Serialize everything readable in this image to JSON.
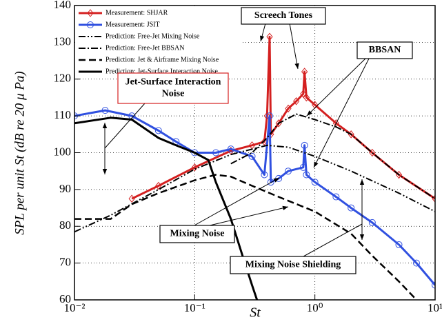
{
  "chart_data": {
    "type": "line",
    "xlabel": "St",
    "ylabel": "SPL per unit St (dB re 20 μ Pa)",
    "xscale": "log",
    "xlim": [
      0.01,
      10
    ],
    "xticks": [
      {
        "value": 0.01,
        "label": "10⁻²"
      },
      {
        "value": 0.1,
        "label": "10⁻¹"
      },
      {
        "value": 1,
        "label": "10⁰"
      },
      {
        "value": 10,
        "label": "10¹"
      }
    ],
    "ylim": [
      60,
      140
    ],
    "yticks": [
      60,
      70,
      80,
      90,
      100,
      110,
      120,
      130,
      140
    ],
    "grid": true,
    "legend": "upper left",
    "series": [
      {
        "name": "Measurement: SHJAR",
        "color": "#d42020",
        "width": 3,
        "dash": "",
        "marker": "diamond",
        "x": [
          0.03,
          0.05,
          0.1,
          0.2,
          0.3,
          0.38,
          0.4,
          0.42,
          0.43,
          0.5,
          0.6,
          0.7,
          0.8,
          0.82,
          0.85,
          1.0,
          1.5,
          2,
          3,
          5,
          10
        ],
        "values": [
          87.5,
          91,
          96,
          100.5,
          102,
          103,
          110,
          131.5,
          105,
          108,
          112,
          114,
          116,
          122,
          115,
          113,
          108,
          105,
          100,
          94,
          87.5
        ]
      },
      {
        "name": "Measurement: JSIT",
        "color": "#3050e0",
        "width": 3,
        "dash": "",
        "marker": "circle",
        "x": [
          0.01,
          0.018,
          0.03,
          0.05,
          0.07,
          0.1,
          0.15,
          0.2,
          0.3,
          0.38,
          0.42,
          0.43,
          0.5,
          0.6,
          0.8,
          0.82,
          0.85,
          1.0,
          1.5,
          2,
          3,
          5,
          7,
          10
        ],
        "values": [
          110,
          111.5,
          110,
          106,
          103,
          100,
          100,
          101,
          99,
          94,
          110,
          92,
          93,
          95,
          96,
          102,
          94,
          92,
          88,
          85,
          81,
          75,
          70,
          64
        ]
      },
      {
        "name": "Prediction: Free-Jet Mixing Noise",
        "color": "#000000",
        "width": 2,
        "dash": "10 3 2 3 2 3",
        "marker": "",
        "x": [
          0.01,
          0.02,
          0.05,
          0.1,
          0.2,
          0.4,
          0.6,
          1,
          2,
          5,
          10
        ],
        "values": [
          78.5,
          83,
          90,
          95.5,
          99.5,
          102,
          101.5,
          99,
          95,
          89,
          84
        ]
      },
      {
        "name": "Prediction: Free-Jet BBSAN",
        "color": "#000000",
        "width": 2,
        "dash": "10 3 2 3",
        "marker": "",
        "x": [
          0.2,
          0.3,
          0.4,
          0.5,
          0.7,
          1,
          1.5,
          2,
          3,
          5,
          10
        ],
        "values": [
          97,
          100,
          104,
          108,
          110.5,
          109,
          107,
          105,
          100,
          94,
          87.5
        ]
      },
      {
        "name": "Prediction: Jet & Airframe Mixing Noise",
        "color": "#000000",
        "width": 2.5,
        "dash": "10 5",
        "marker": "",
        "x": [
          0.01,
          0.02,
          0.03,
          0.05,
          0.1,
          0.15,
          0.2,
          0.3,
          0.5,
          1,
          2,
          3,
          5,
          7
        ],
        "values": [
          82,
          82,
          86,
          89,
          92.5,
          94,
          93.5,
          91,
          88,
          84,
          78,
          72,
          65,
          60
        ]
      },
      {
        "name": "Prediction: Jet-Surface Interaction Noise",
        "color": "#000000",
        "width": 3,
        "dash": "",
        "marker": "",
        "x": [
          0.01,
          0.02,
          0.03,
          0.05,
          0.07,
          0.1,
          0.13,
          0.15,
          0.2,
          0.25,
          0.3,
          0.33
        ],
        "values": [
          108,
          109.5,
          109,
          104,
          102,
          100,
          98,
          92,
          82,
          72,
          64,
          60
        ]
      }
    ],
    "annotations": [
      {
        "lines": [
          "Screech Tones"
        ]
      },
      {
        "lines": [
          "BBSAN"
        ]
      },
      {
        "lines": [
          "Jet-Surface Interaction",
          "Noise"
        ]
      },
      {
        "lines": [
          "Mixing Noise"
        ]
      },
      {
        "lines": [
          "Mixing Noise Shielding"
        ]
      }
    ]
  }
}
